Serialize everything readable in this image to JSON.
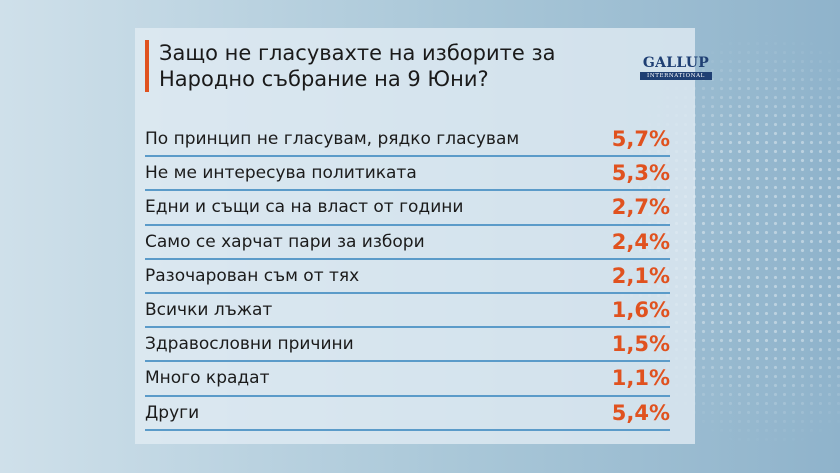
{
  "title": {
    "line1": "Защо не гласувахте на изборите за",
    "line2": "Народно събрание на 9 Юни?"
  },
  "logo": {
    "main": "GALLUP",
    "sub": "INTERNATIONAL"
  },
  "colors": {
    "accent": "#e0521f",
    "divider": "#5b9bc9",
    "logo": "#1f3f73"
  },
  "chart_data": {
    "type": "table",
    "title": "Защо не гласувахте на изборите за Народно събрание на 9 Юни?",
    "rows": [
      {
        "label": "По принцип не гласувам, рядко гласувам",
        "value": 5.7,
        "display": "5,7%"
      },
      {
        "label": "Не ме интересува политиката",
        "value": 5.3,
        "display": "5,3%"
      },
      {
        "label": "Едни и същи са на власт от години",
        "value": 2.7,
        "display": "2,7%"
      },
      {
        "label": "Само се харчат пари за избори",
        "value": 2.4,
        "display": "2,4%"
      },
      {
        "label": "Разочарован съм от тях",
        "value": 2.1,
        "display": "2,1%"
      },
      {
        "label": "Всички лъжат",
        "value": 1.6,
        "display": "1,6%"
      },
      {
        "label": "Здравословни причини",
        "value": 1.5,
        "display": "1,5%"
      },
      {
        "label": "Много крадат",
        "value": 1.1,
        "display": "1,1%"
      },
      {
        "label": "Други",
        "value": 5.4,
        "display": "5,4%"
      }
    ]
  }
}
